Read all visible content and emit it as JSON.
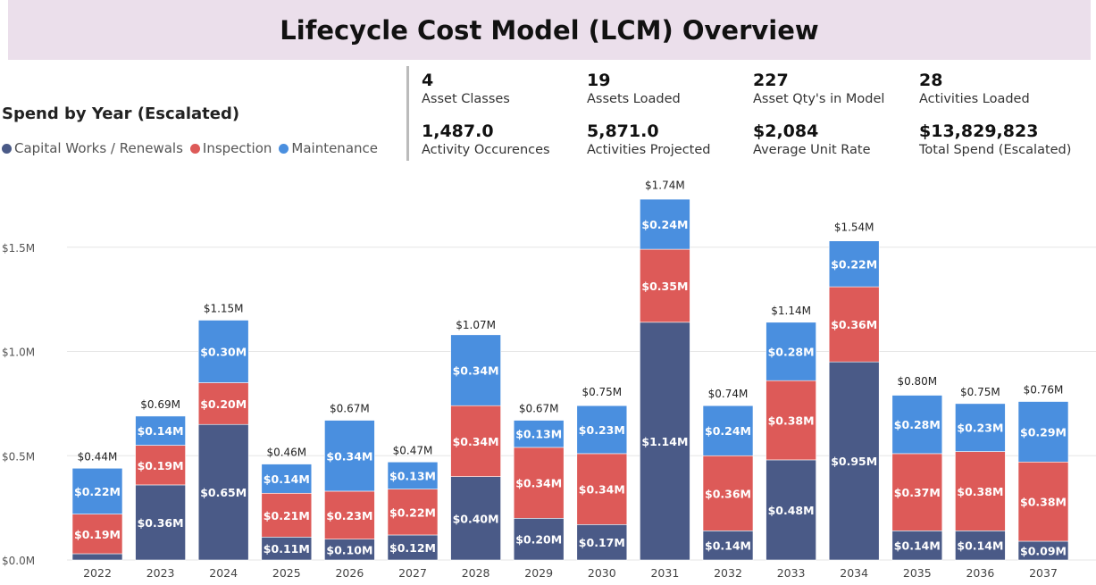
{
  "title": "Lifecycle Cost Model (LCM) Overview",
  "kpis": [
    {
      "value": "4",
      "label": "Asset Classes"
    },
    {
      "value": "19",
      "label": "Assets Loaded"
    },
    {
      "value": "227",
      "label": "Asset Qty's in Model"
    },
    {
      "value": "28",
      "label": "Activities Loaded"
    },
    {
      "value": "1,487.0",
      "label": "Activity Occurences"
    },
    {
      "value": "5,871.0",
      "label": "Activities Projected"
    },
    {
      "value": "$2,084",
      "label": "Average Unit Rate"
    },
    {
      "value": "$13,829,823",
      "label": "Total Spend (Escalated)"
    }
  ],
  "chart_data": {
    "type": "bar",
    "stacked": true,
    "title": "Spend by Year (Escalated)",
    "legend_position": "top-left",
    "categories": [
      "2022",
      "2023",
      "2024",
      "2025",
      "2026",
      "2027",
      "2028",
      "2029",
      "2030",
      "2031",
      "2032",
      "2033",
      "2034",
      "2035",
      "2036",
      "2037"
    ],
    "series": [
      {
        "name": "Capital Works / Renewals",
        "color": "#4a5a87",
        "values": [
          0.03,
          0.36,
          0.65,
          0.11,
          0.1,
          0.12,
          0.4,
          0.2,
          0.17,
          1.14,
          0.14,
          0.48,
          0.95,
          0.14,
          0.14,
          0.09
        ]
      },
      {
        "name": "Inspection",
        "color": "#dd5a58",
        "values": [
          0.19,
          0.19,
          0.2,
          0.21,
          0.23,
          0.22,
          0.34,
          0.34,
          0.34,
          0.35,
          0.36,
          0.38,
          0.36,
          0.37,
          0.38,
          0.38
        ]
      },
      {
        "name": "Maintenance",
        "color": "#4a8fdf",
        "values": [
          0.22,
          0.14,
          0.3,
          0.14,
          0.34,
          0.13,
          0.34,
          0.13,
          0.23,
          0.24,
          0.24,
          0.28,
          0.22,
          0.28,
          0.23,
          0.29
        ]
      }
    ],
    "totals": [
      0.44,
      0.69,
      1.15,
      0.46,
      0.67,
      0.47,
      1.07,
      0.67,
      0.75,
      1.74,
      0.74,
      1.14,
      1.54,
      0.8,
      0.75,
      0.76
    ],
    "unit": "$M",
    "yticks": [
      "$0.0M",
      "$0.5M",
      "$1.0M",
      "$1.5M"
    ],
    "ytick_values": [
      0,
      0.5,
      1.0,
      1.5
    ],
    "ylim": [
      0,
      1.85
    ],
    "grid": true
  }
}
